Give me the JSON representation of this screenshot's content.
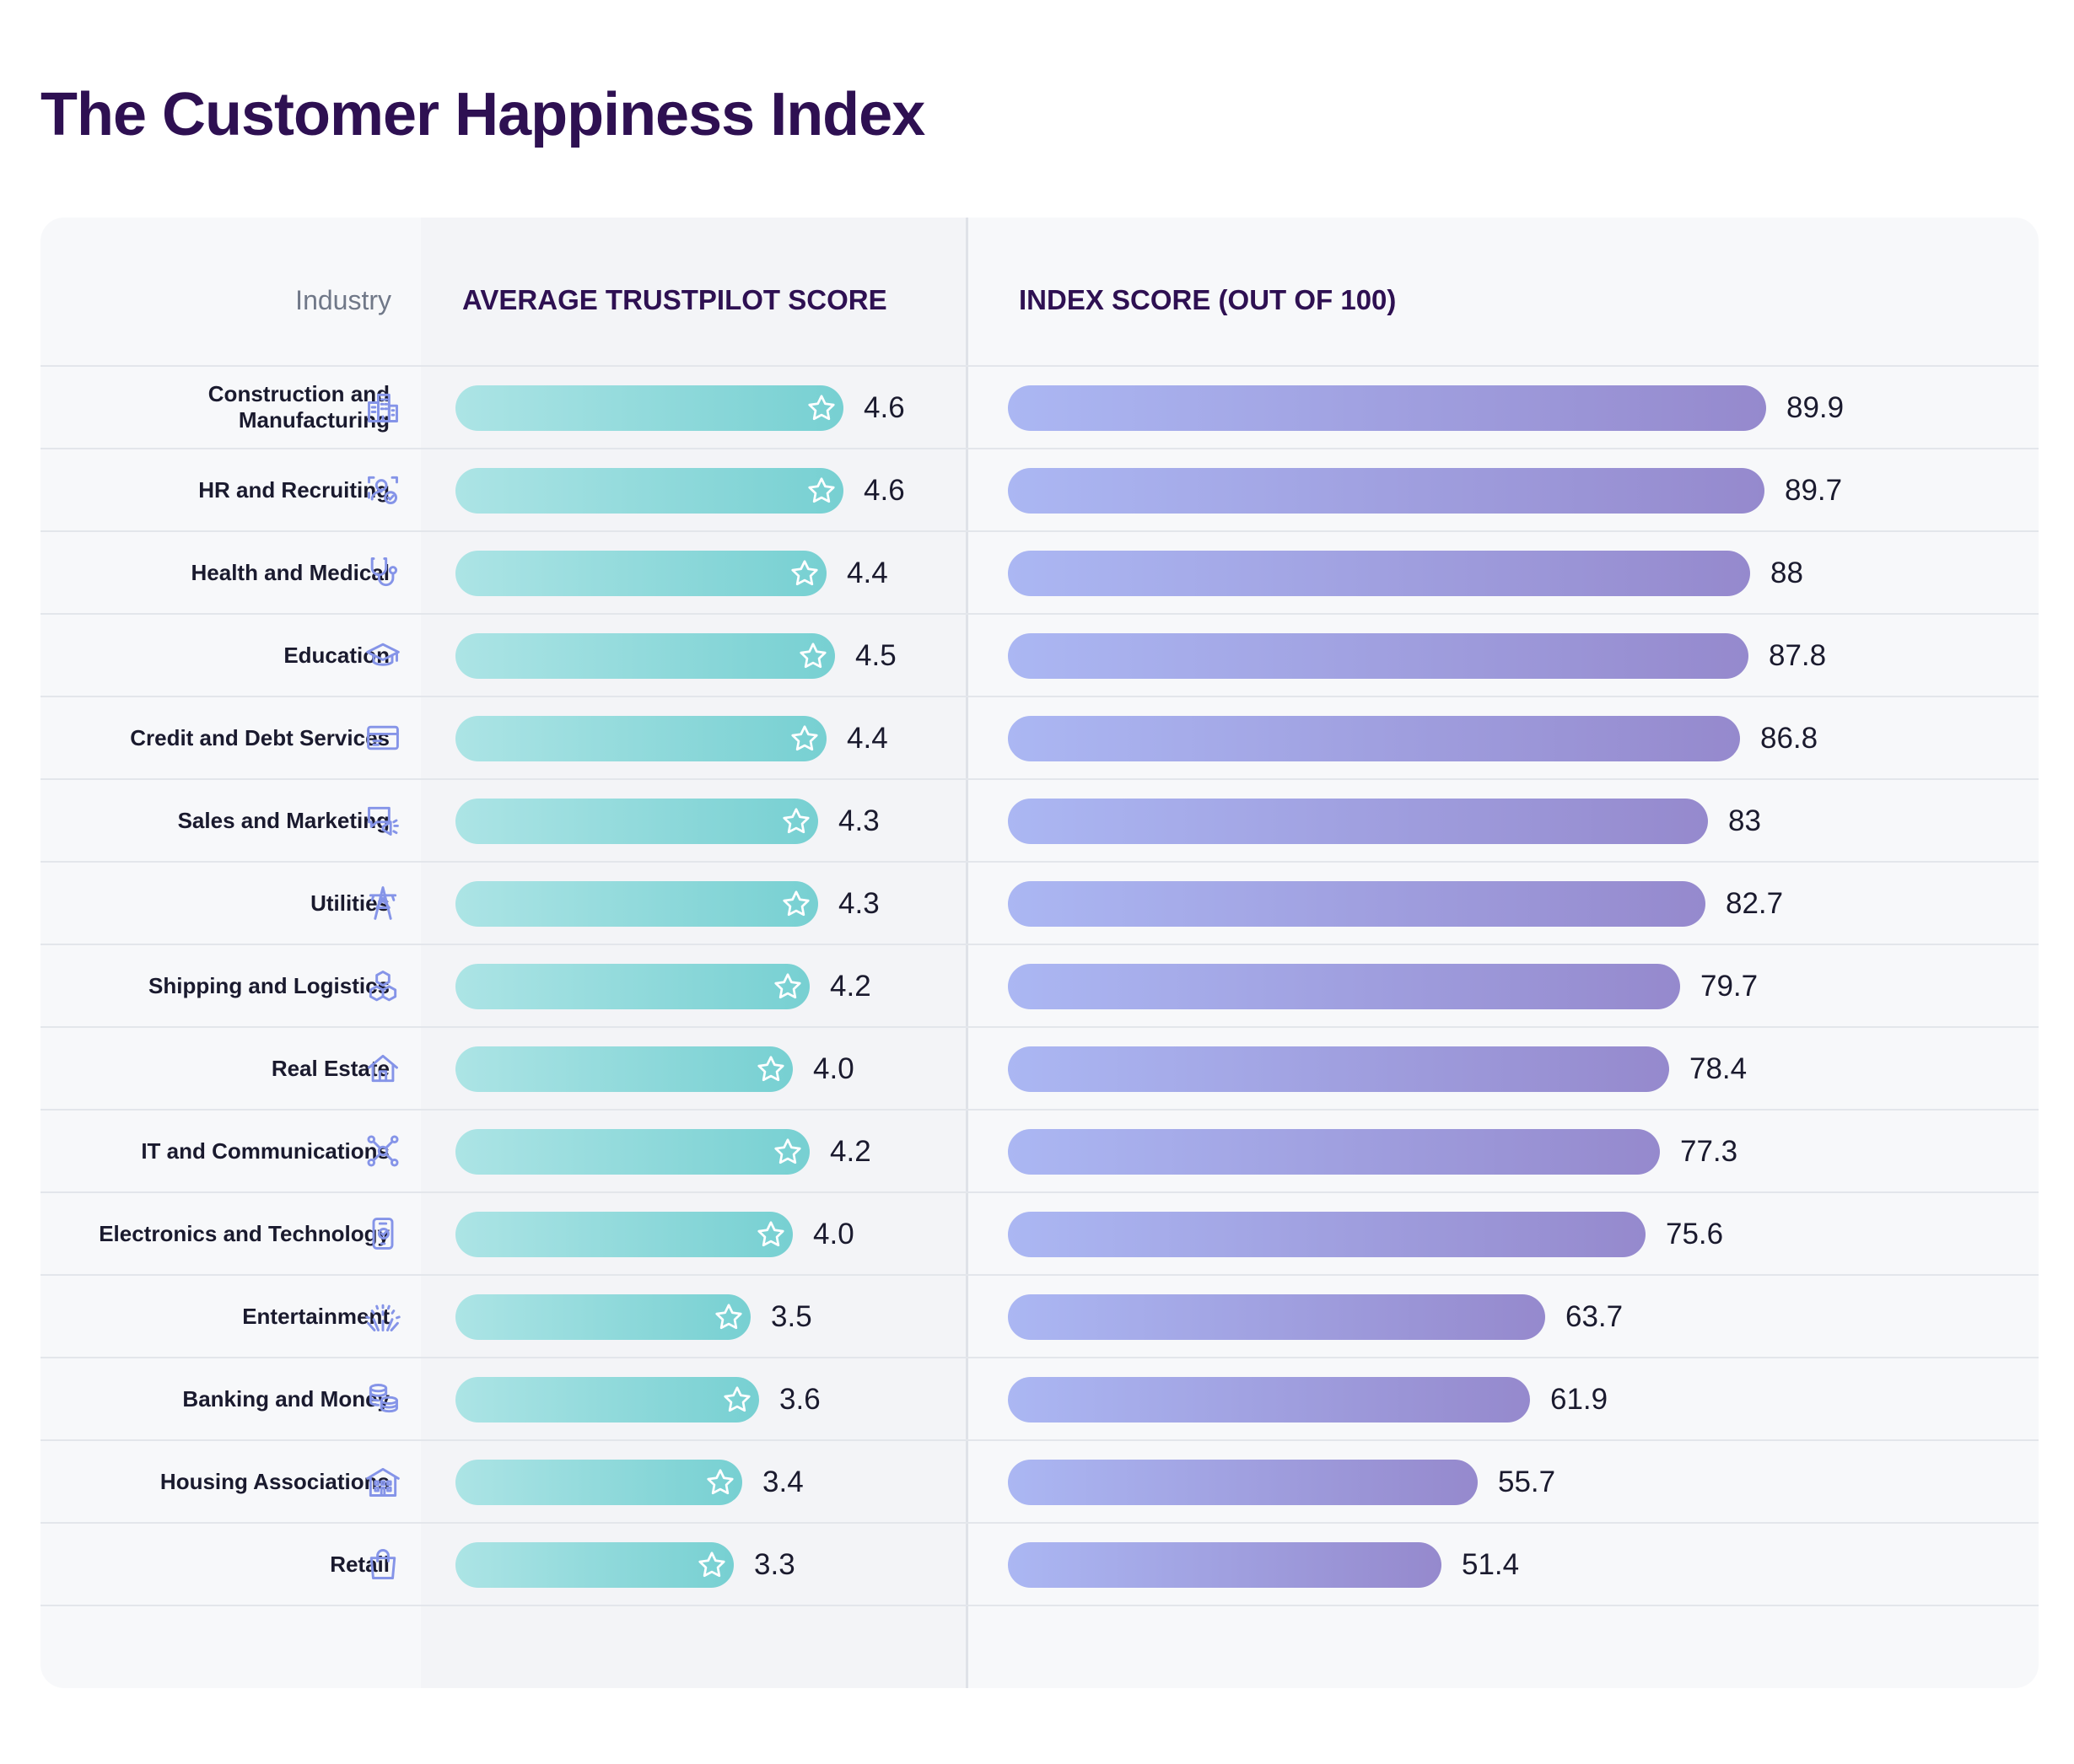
{
  "title": "The Customer Happiness Index",
  "headers": {
    "industry": "Industry",
    "trustpilot": "AVERAGE TRUSTPILOT SCORE",
    "index": "INDEX SCORE (OUT OF 100)"
  },
  "colors": {
    "title": "#2e1052",
    "trustpilot_bar_start": "#ace4e5",
    "trustpilot_bar_end": "#77d0d2",
    "index_bar_start": "#abb7f3",
    "index_bar_end": "#9589cd",
    "icon": "#8594e8"
  },
  "chart_data": [
    {
      "type": "bar",
      "orientation": "horizontal",
      "title": "AVERAGE TRUSTPILOT SCORE",
      "categories": [
        "Construction and Manufacturing",
        "HR and Recruiting",
        "Health and Medical",
        "Education",
        "Credit and Debt Services",
        "Sales and Marketing",
        "Utilities",
        "Shipping and Logistics",
        "Real Estate",
        "IT and Communications",
        "Electronics and Technology",
        "Entertainment",
        "Banking and Money",
        "Housing Associations",
        "Retail"
      ],
      "values": [
        4.6,
        4.6,
        4.4,
        4.5,
        4.4,
        4.3,
        4.3,
        4.2,
        4.0,
        4.2,
        4.0,
        3.5,
        3.6,
        3.4,
        3.3
      ],
      "value_labels": [
        "4.6",
        "4.6",
        "4.4",
        "4.5",
        "4.4",
        "4.3",
        "4.3",
        "4.2",
        "4.0",
        "4.2",
        "4.0",
        "3.5",
        "3.6",
        "3.4",
        "3.3"
      ],
      "xlim": [
        0,
        5
      ],
      "marker": "star-icon",
      "grid": false
    },
    {
      "type": "bar",
      "orientation": "horizontal",
      "title": "INDEX SCORE (OUT OF 100)",
      "categories": [
        "Construction and Manufacturing",
        "HR and Recruiting",
        "Health and Medical",
        "Education",
        "Credit and Debt Services",
        "Sales and Marketing",
        "Utilities",
        "Shipping and Logistics",
        "Real Estate",
        "IT and Communications",
        "Electronics and Technology",
        "Entertainment",
        "Banking and Money",
        "Housing Associations",
        "Retail"
      ],
      "values": [
        89.9,
        89.7,
        88,
        87.8,
        86.8,
        83,
        82.7,
        79.7,
        78.4,
        77.3,
        75.6,
        63.7,
        61.9,
        55.7,
        51.4
      ],
      "value_labels": [
        "89.9",
        "89.7",
        "88",
        "87.8",
        "86.8",
        "83",
        "82.7",
        "79.7",
        "78.4",
        "77.3",
        "75.6",
        "63.7",
        "61.9",
        "55.7",
        "51.4"
      ],
      "xlim": [
        0,
        100
      ],
      "grid": false
    }
  ],
  "rows": [
    {
      "label": "Construction and Manufacturing",
      "icon": "buildings-icon"
    },
    {
      "label": "HR and Recruiting",
      "icon": "recruiting-icon"
    },
    {
      "label": "Health and Medical",
      "icon": "stethoscope-icon"
    },
    {
      "label": "Education",
      "icon": "graduation-cap-icon"
    },
    {
      "label": "Credit and Debt Services",
      "icon": "credit-card-icon"
    },
    {
      "label": "Sales and Marketing",
      "icon": "megaphone-chat-icon"
    },
    {
      "label": "Utilities",
      "icon": "power-tower-icon"
    },
    {
      "label": "Shipping and Logistics",
      "icon": "boxes-icon"
    },
    {
      "label": "Real Estate",
      "icon": "house-icon"
    },
    {
      "label": "IT and Communications",
      "icon": "network-icon"
    },
    {
      "label": "Electronics and Technology",
      "icon": "smartphone-icon"
    },
    {
      "label": "Entertainment",
      "icon": "fireworks-icon"
    },
    {
      "label": "Banking and Money",
      "icon": "coins-icon"
    },
    {
      "label": "Housing Associations",
      "icon": "apartment-icon"
    },
    {
      "label": "Retail",
      "icon": "shopping-bag-icon"
    }
  ]
}
